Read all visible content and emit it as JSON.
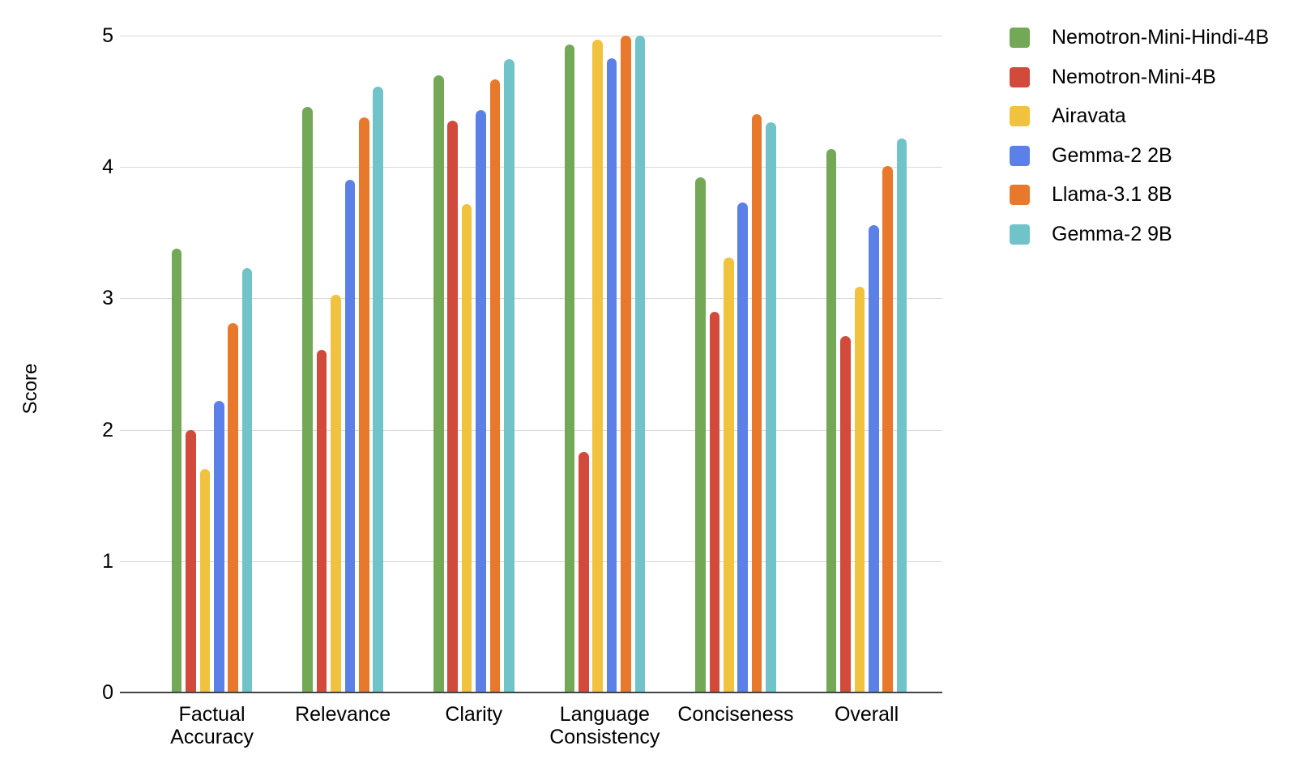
{
  "chart_data": {
    "type": "bar",
    "categories": [
      "Factual Accuracy",
      "Relevance",
      "Clarity",
      "Language Consistency",
      "Conciseness",
      "Overall"
    ],
    "series": [
      {
        "name": "Nemotron-Mini-Hindi-4B",
        "color": "#72A856",
        "values": [
          3.38,
          4.46,
          4.7,
          4.93,
          3.92,
          4.14
        ]
      },
      {
        "name": "Nemotron-Mini-4B",
        "color": "#D14A3C",
        "values": [
          2.0,
          2.61,
          4.35,
          1.83,
          2.9,
          2.71
        ]
      },
      {
        "name": "Airavata",
        "color": "#F0C23E",
        "values": [
          1.7,
          3.03,
          3.72,
          4.97,
          3.31,
          3.09
        ]
      },
      {
        "name": "Gemma-2 2B",
        "color": "#5B81E8",
        "values": [
          2.22,
          3.9,
          4.43,
          4.83,
          3.73,
          3.56
        ]
      },
      {
        "name": "Llama-3.1 8B",
        "color": "#E8782C",
        "values": [
          2.81,
          4.38,
          4.67,
          5.0,
          4.4,
          4.01
        ]
      },
      {
        "name": "Gemma-2 9B",
        "color": "#70C3C9",
        "values": [
          3.23,
          4.61,
          4.82,
          5.0,
          4.34,
          4.22
        ]
      }
    ],
    "ylabel": "Score",
    "xlabel": "",
    "ylim": [
      0,
      5
    ],
    "yticks": [
      0,
      1,
      2,
      3,
      4,
      5
    ],
    "grid": true,
    "legend_position": "right",
    "background": "#ffffff",
    "grid_color": "#d9d9d9",
    "axis_color": "#444444"
  }
}
